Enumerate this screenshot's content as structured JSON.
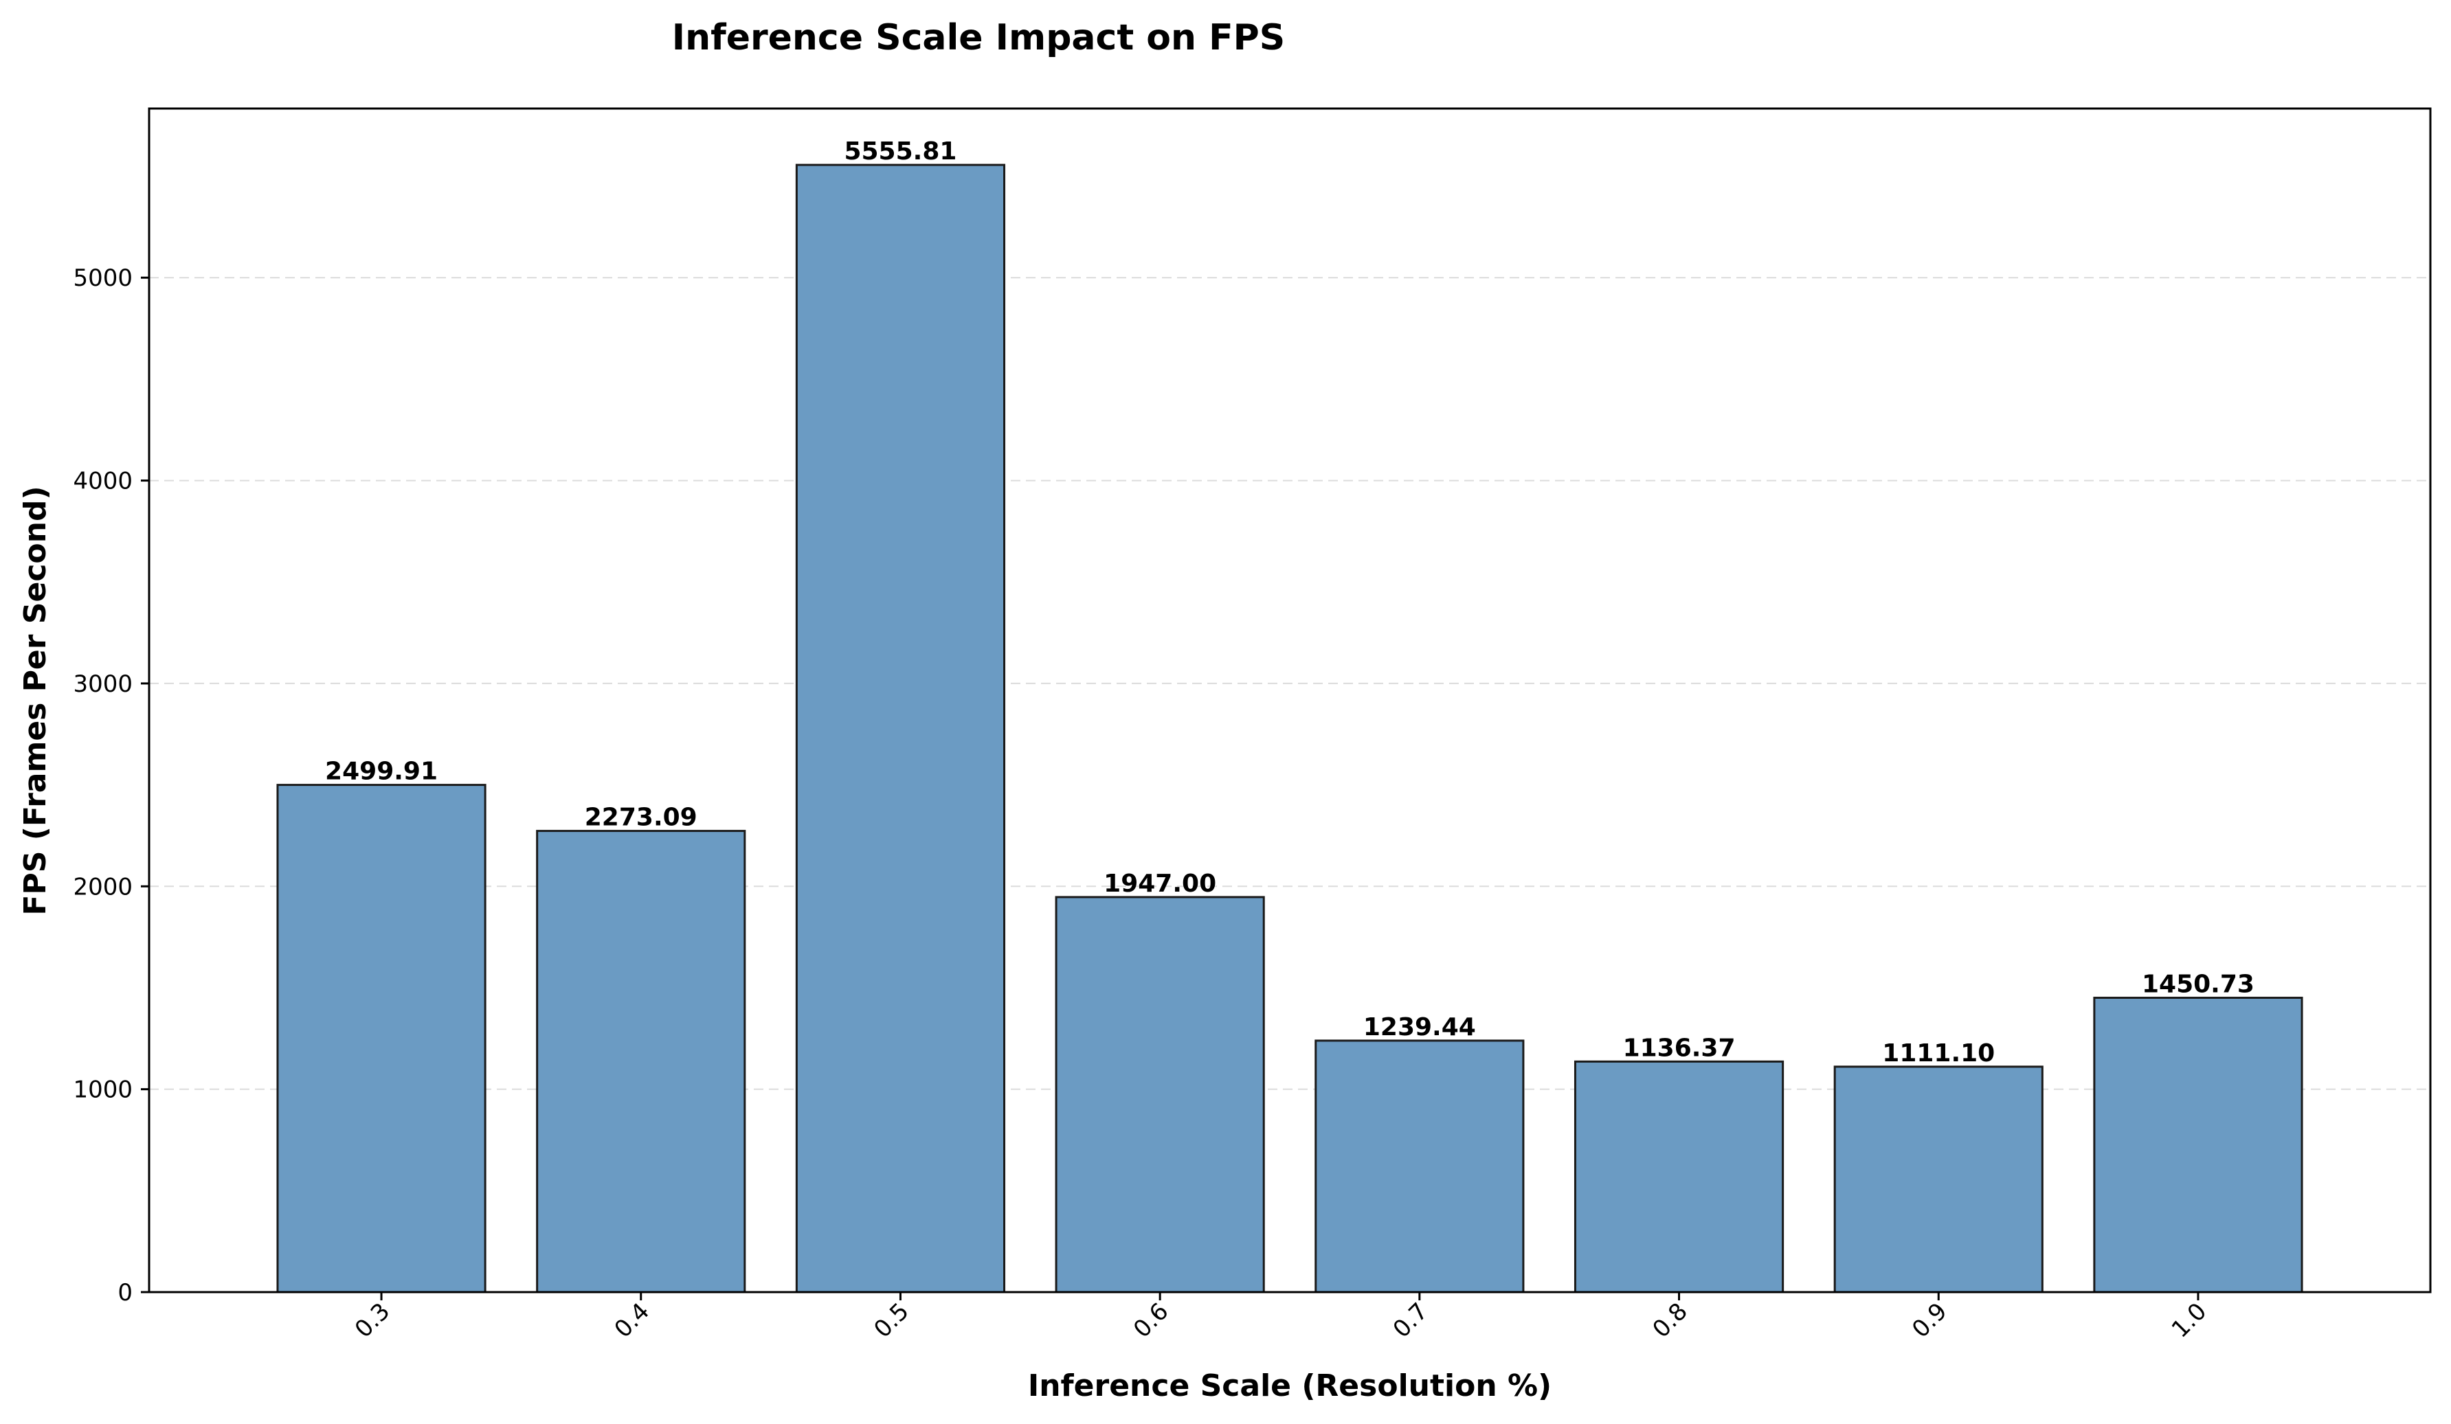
{
  "chart_data": {
    "type": "bar",
    "title": "Inference Scale Impact on FPS",
    "xlabel": "Inference Scale (Resolution %)",
    "ylabel": "FPS (Frames Per Second)",
    "categories": [
      "0.3",
      "0.4",
      "0.5",
      "0.6",
      "0.7",
      "0.8",
      "0.9",
      "1.0"
    ],
    "values": [
      2499.91,
      2273.09,
      5555.81,
      1947.0,
      1239.44,
      1136.37,
      1111.1,
      1450.73
    ],
    "value_labels": [
      "2499.91",
      "2273.09",
      "5555.81",
      "1947.00",
      "1239.44",
      "1136.37",
      "1111.10",
      "1450.73"
    ],
    "yticks": [
      0,
      1000,
      2000,
      3000,
      4000,
      5000
    ],
    "ylim": [
      0,
      5833.6
    ],
    "grid": "horizontal dashed",
    "xtick_rotation": 45,
    "bar_color": "#6b9bc3",
    "bar_edge_color": "#1a1a1a"
  }
}
